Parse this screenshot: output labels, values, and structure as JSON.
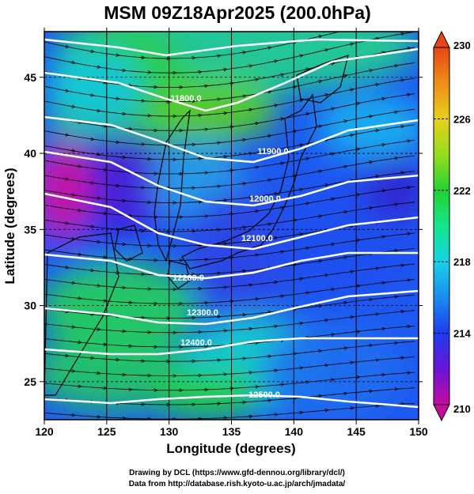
{
  "title": "MSM 09Z18Apr2025 (200.0hPa)",
  "xlabel": "Longitude (degrees)",
  "ylabel": "Latitude  (degrees)",
  "xticks": [
    "120",
    "125",
    "130",
    "135",
    "140",
    "145",
    "150"
  ],
  "yticks": [
    "25",
    "30",
    "35",
    "40",
    "45"
  ],
  "colorbar": {
    "labels": [
      "230",
      "226",
      "222",
      "218",
      "214",
      "210"
    ],
    "min": 210,
    "max": 230,
    "colors": [
      "#c80aa0",
      "#6a14d8",
      "#1e3cf0",
      "#1b8cf0",
      "#17d2e6",
      "#14e68c",
      "#22d232",
      "#96dc1e",
      "#e6d219",
      "#f08c19",
      "#e64614"
    ]
  },
  "contours": [
    {
      "label": "11800.0"
    },
    {
      "label": "11900.0"
    },
    {
      "label": "12000.0"
    },
    {
      "label": "12100.0"
    },
    {
      "label": "12200.0"
    },
    {
      "label": "12300.0"
    },
    {
      "label": "12400.0"
    },
    {
      "label": "12500.0"
    }
  ],
  "chart_data": {
    "type": "heatmap",
    "title": "MSM 09Z18Apr2025 (200.0hPa)",
    "xlabel": "Longitude (degrees)",
    "ylabel": "Latitude  (degrees)",
    "xlim": [
      120,
      150
    ],
    "ylim": [
      22.5,
      48
    ],
    "color_range": [
      210,
      230
    ],
    "contour_levels": [
      11800,
      11900,
      12000,
      12100,
      12200,
      12300,
      12400,
      12500
    ]
  },
  "footer": {
    "line1": "Drawing by DCL (https://www.gfd-dennou.org/library/dcl/)",
    "line2": "Data from http://database.rish.kyoto-u.ac.jp/arch/jmadata/"
  }
}
